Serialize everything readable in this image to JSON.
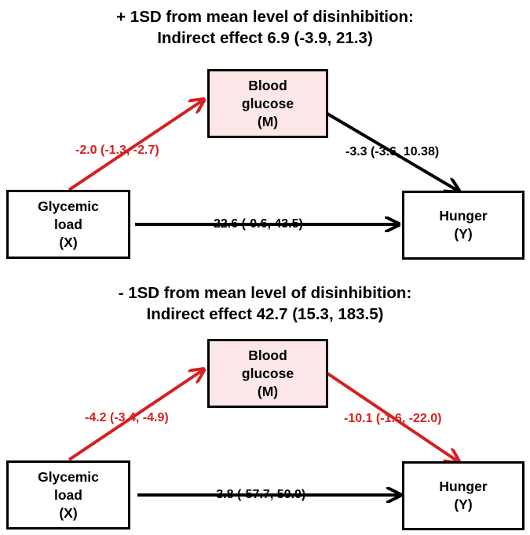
{
  "colors": {
    "significant": "#d61f1f",
    "nonsignificant": "#000000",
    "mediator_fill": "#fbe7e7"
  },
  "panels": [
    {
      "title_line1": "+ 1SD from mean level of disinhibition:",
      "title_line2": "Indirect effect 6.9 (-3.9, 21.3)",
      "x_node": {
        "line1": "Glycemic",
        "line2": "load",
        "line3": "(X)"
      },
      "m_node": {
        "line1": "Blood",
        "line2": "glucose",
        "line3": "(M)"
      },
      "y_node": {
        "line1": "Hunger",
        "line2": "(Y)"
      },
      "path_a": {
        "label": "-2.0 (-1.3, -2.7)",
        "significant": true
      },
      "path_b": {
        "label": "-3.3 (-3.6, 10.38)",
        "significant": false
      },
      "path_c": {
        "label": "22.6 (-0.6, 43.5)",
        "significant": false
      }
    },
    {
      "title_line1": "- 1SD from mean level of disinhibition:",
      "title_line2": "Indirect effect 42.7 (15.3, 183.5)",
      "x_node": {
        "line1": "Glycemic",
        "line2": "load",
        "line3": "(X)"
      },
      "m_node": {
        "line1": "Blood",
        "line2": "glucose",
        "line3": "(M)"
      },
      "y_node": {
        "line1": "Hunger",
        "line2": "(Y)"
      },
      "path_a": {
        "label": "-4.2 (-3.4, -4.9)",
        "significant": true
      },
      "path_b": {
        "label": "-10.1 (-1.6, -22.0)",
        "significant": true
      },
      "path_c": {
        "label": "-3.8 (-57.7, 50.0)",
        "significant": false
      }
    }
  ]
}
